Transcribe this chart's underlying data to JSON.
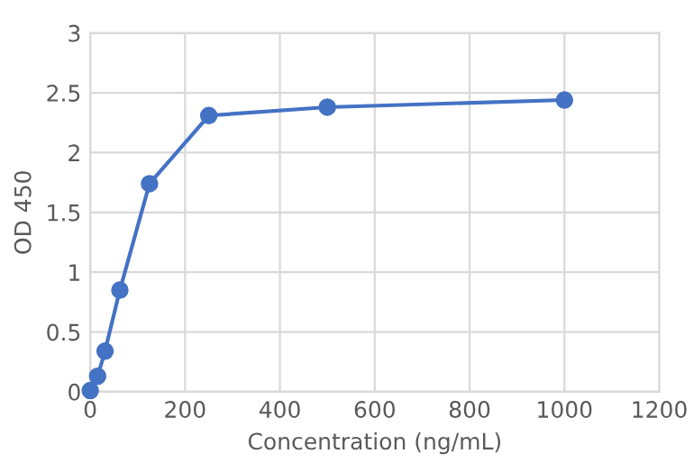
{
  "chart_data": {
    "type": "line",
    "xlabel": "Concentration (ng/mL)",
    "ylabel": "OD 450",
    "x": [
      0,
      15.6,
      31.25,
      62.5,
      125,
      250,
      500,
      1000
    ],
    "series": [
      {
        "color": "#4472c4",
        "values": [
          0.01,
          0.13,
          0.34,
          0.85,
          1.74,
          2.31,
          2.38,
          2.44
        ]
      }
    ],
    "xlim": [
      0,
      1200
    ],
    "xticks": [
      0,
      200,
      400,
      600,
      800,
      1000,
      1200
    ],
    "ylim": [
      0,
      3
    ],
    "yticks": [
      0,
      0.5,
      1,
      1.5,
      2,
      2.5,
      3
    ],
    "grid": true,
    "marker": "circle",
    "line_style": "solid",
    "legend": false
  }
}
